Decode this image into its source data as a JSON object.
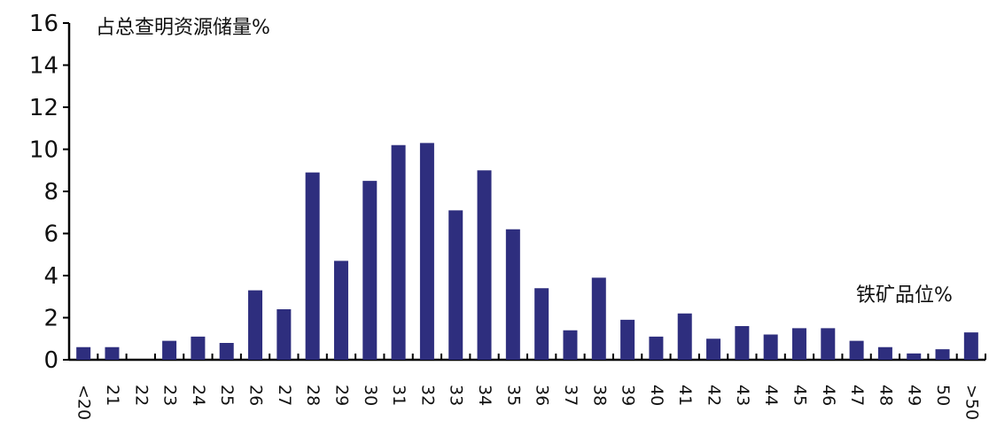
{
  "chart_data": {
    "type": "bar",
    "ylabel": "占总查明资源储量%",
    "xlabel": "铁矿品位%",
    "categories": [
      "<20",
      "21",
      "22",
      "23",
      "24",
      "25",
      "26",
      "27",
      "28",
      "29",
      "30",
      "31",
      "32",
      "33",
      "34",
      "35",
      "36",
      "37",
      "38",
      "39",
      "40",
      "41",
      "42",
      "43",
      "44",
      "45",
      "46",
      "47",
      "48",
      "49",
      "50",
      ">50"
    ],
    "values": [
      0.6,
      0.6,
      0,
      0.9,
      1.1,
      0.8,
      3.3,
      2.4,
      8.9,
      4.7,
      8.5,
      10.2,
      10.3,
      7.1,
      9.0,
      6.2,
      3.4,
      1.4,
      3.9,
      1.9,
      1.1,
      2.2,
      1.0,
      1.6,
      1.2,
      1.5,
      1.5,
      0.9,
      0.6,
      0.3,
      0.5,
      1.3
    ],
    "ylim": [
      0,
      16
    ],
    "yticks": [
      0,
      2,
      4,
      6,
      8,
      10,
      12,
      14,
      16
    ],
    "bar_color": "#2e2e7e",
    "grid": false,
    "legend": "none"
  }
}
